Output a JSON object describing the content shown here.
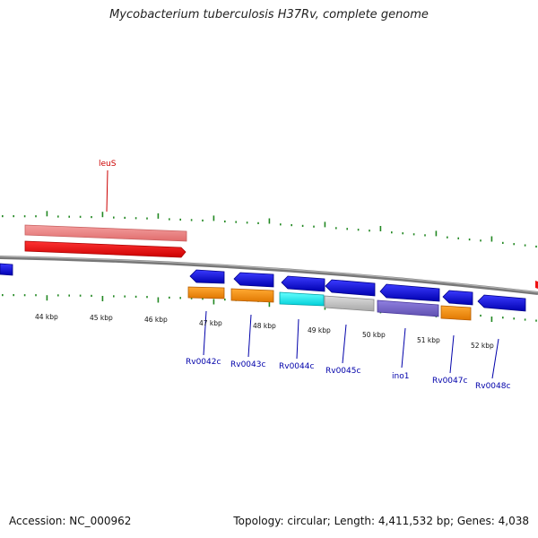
{
  "title": "Mycobacterium tuberculosis H37Rv, complete genome",
  "footer": {
    "accession": "Accession: NC_000962",
    "summary": "Topology: circular; Length: 4,411,532 bp; Genes: 4,038"
  },
  "scale": {
    "tick_labels": [
      "44 kbp",
      "45 kbp",
      "46 kbp",
      "47 kbp",
      "48 kbp",
      "49 kbp",
      "50 kbp",
      "51 kbp",
      "52 kbp"
    ]
  },
  "colors": {
    "forward_gene_light": "#f08080",
    "forward_gene": "#ee1111",
    "reverse_gene": "#1111dd",
    "orange_feature": "#ff8800",
    "cyan_feature": "#00e5ee",
    "gray_feature": "#bbbbbb",
    "purple_feature": "#7766cc",
    "backbone": "#888888",
    "ticks": "#228822",
    "forward_label": "#cc0000",
    "reverse_label": "#0000aa"
  },
  "genes": [
    {
      "name": "leuS",
      "strand": "forward"
    },
    {
      "name": "Rv0042c",
      "strand": "reverse"
    },
    {
      "name": "Rv0043c",
      "strand": "reverse"
    },
    {
      "name": "Rv0044c",
      "strand": "reverse"
    },
    {
      "name": "Rv0045c",
      "strand": "reverse"
    },
    {
      "name": "ino1",
      "strand": "reverse"
    },
    {
      "name": "Rv0047c",
      "strand": "reverse"
    },
    {
      "name": "Rv0048c",
      "strand": "reverse"
    }
  ]
}
